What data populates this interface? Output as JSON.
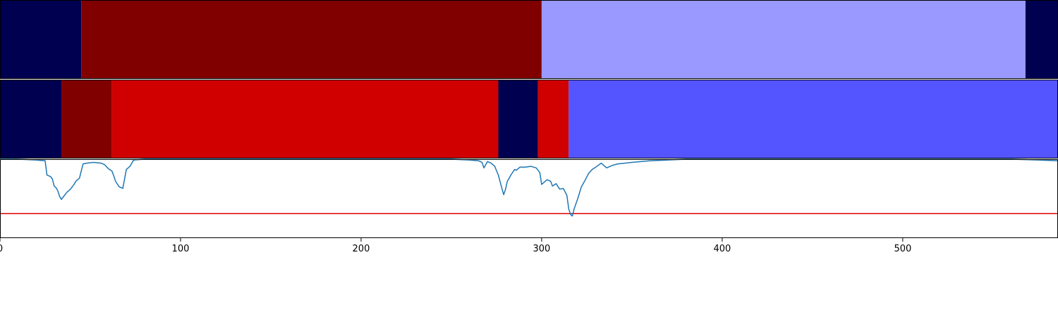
{
  "chart_data": [
    {
      "type": "segments",
      "xlim": [
        0,
        586
      ],
      "colors": {
        "navy": "#000050",
        "darkred": "#800000",
        "red": "#d00000",
        "blue": "#5555ff",
        "lightblue": "#9999ff"
      },
      "segments": [
        {
          "start": 0,
          "end": 45,
          "color": "#000050"
        },
        {
          "start": 45,
          "end": 300,
          "color": "#800000"
        },
        {
          "start": 300,
          "end": 568,
          "color": "#9999ff"
        },
        {
          "start": 568,
          "end": 586,
          "color": "#000050"
        }
      ]
    },
    {
      "type": "segments",
      "xlim": [
        0,
        586
      ],
      "segments": [
        {
          "start": 0,
          "end": 34,
          "color": "#000050"
        },
        {
          "start": 34,
          "end": 62,
          "color": "#800000"
        },
        {
          "start": 62,
          "end": 276,
          "color": "#d00000"
        },
        {
          "start": 276,
          "end": 298,
          "color": "#000050"
        },
        {
          "start": 298,
          "end": 315,
          "color": "#d00000"
        },
        {
          "start": 315,
          "end": 586,
          "color": "#5555ff"
        }
      ]
    },
    {
      "type": "line",
      "xlim": [
        0,
        586
      ],
      "ylim": [
        0,
        1
      ],
      "line_color": "#1f77b4",
      "threshold": 0.31,
      "threshold_color": "#dd0000",
      "xticks": [
        0,
        100,
        200,
        300,
        400,
        500
      ],
      "xtick_labels": [
        "0",
        "100",
        "200",
        "300",
        "400",
        "500"
      ],
      "points": [
        [
          0,
          1.0
        ],
        [
          10,
          1.0
        ],
        [
          20,
          0.99
        ],
        [
          25,
          0.98
        ],
        [
          26,
          0.8
        ],
        [
          28,
          0.78
        ],
        [
          29,
          0.75
        ],
        [
          30,
          0.66
        ],
        [
          31,
          0.64
        ],
        [
          32,
          0.6
        ],
        [
          33,
          0.53
        ],
        [
          34,
          0.49
        ],
        [
          35,
          0.52
        ],
        [
          37,
          0.58
        ],
        [
          39,
          0.62
        ],
        [
          41,
          0.68
        ],
        [
          42,
          0.72
        ],
        [
          44,
          0.76
        ],
        [
          46,
          0.94
        ],
        [
          48,
          0.95
        ],
        [
          52,
          0.96
        ],
        [
          56,
          0.95
        ],
        [
          58,
          0.93
        ],
        [
          60,
          0.88
        ],
        [
          62,
          0.85
        ],
        [
          63,
          0.79
        ],
        [
          64,
          0.72
        ],
        [
          66,
          0.65
        ],
        [
          68,
          0.63
        ],
        [
          70,
          0.87
        ],
        [
          72,
          0.91
        ],
        [
          74,
          0.99
        ],
        [
          80,
          1.0
        ],
        [
          150,
          1.0
        ],
        [
          250,
          1.0
        ],
        [
          260,
          0.99
        ],
        [
          265,
          0.98
        ],
        [
          267,
          0.96
        ],
        [
          268,
          0.89
        ],
        [
          270,
          0.97
        ],
        [
          272,
          0.95
        ],
        [
          274,
          0.91
        ],
        [
          276,
          0.8
        ],
        [
          278,
          0.63
        ],
        [
          279,
          0.55
        ],
        [
          280,
          0.62
        ],
        [
          281,
          0.72
        ],
        [
          283,
          0.8
        ],
        [
          285,
          0.87
        ],
        [
          286,
          0.86
        ],
        [
          288,
          0.9
        ],
        [
          291,
          0.9
        ],
        [
          294,
          0.91
        ],
        [
          297,
          0.89
        ],
        [
          299,
          0.83
        ],
        [
          300,
          0.68
        ],
        [
          301,
          0.7
        ],
        [
          303,
          0.74
        ],
        [
          305,
          0.72
        ],
        [
          306,
          0.66
        ],
        [
          308,
          0.69
        ],
        [
          310,
          0.62
        ],
        [
          312,
          0.63
        ],
        [
          314,
          0.54
        ],
        [
          315,
          0.37
        ],
        [
          316,
          0.3
        ],
        [
          317,
          0.28
        ],
        [
          318,
          0.37
        ],
        [
          320,
          0.5
        ],
        [
          322,
          0.65
        ],
        [
          324,
          0.73
        ],
        [
          326,
          0.82
        ],
        [
          328,
          0.87
        ],
        [
          330,
          0.9
        ],
        [
          333,
          0.95
        ],
        [
          336,
          0.89
        ],
        [
          339,
          0.92
        ],
        [
          342,
          0.94
        ],
        [
          346,
          0.95
        ],
        [
          350,
          0.96
        ],
        [
          355,
          0.97
        ],
        [
          360,
          0.98
        ],
        [
          370,
          0.99
        ],
        [
          380,
          1.0
        ],
        [
          400,
          1.0
        ],
        [
          500,
          1.0
        ],
        [
          560,
          1.0
        ],
        [
          575,
          0.99
        ],
        [
          586,
          0.98
        ]
      ]
    }
  ]
}
